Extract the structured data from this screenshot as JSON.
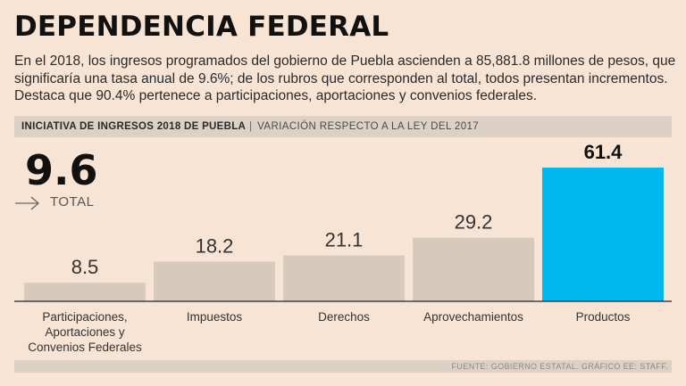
{
  "header": {
    "title": "DEPENDENCIA FEDERAL",
    "intro": "En el 2018, los ingresos programados del gobierno de Puebla ascienden a 85,881.8 millones de pesos, que significaría una tasa anual de 9.6%; de los rubros que corresponden al total, todos presentan incrementos. Destaca que 90.4% pertenece a participaciones, aportaciones y convenios federales."
  },
  "band": {
    "bold_label": "INICIATIVA DE INGRESOS 2018 DE PUEBLA",
    "separator": "|",
    "sub_label": "VARIACIÓN RESPECTO A LA LEY DEL 2017"
  },
  "total": {
    "value": "9.6",
    "label": "TOTAL"
  },
  "colors": {
    "bar": "#d7c9bb",
    "highlight": "#00b7ef",
    "background": "#f8e4d5"
  },
  "chart_data": {
    "type": "bar",
    "title": "INICIATIVA DE INGRESOS 2018 DE PUEBLA",
    "subtitle": "VARIACIÓN RESPECTO A LA LEY DEL 2017",
    "categories": [
      [
        "Participaciones,",
        "Aportaciones y",
        "Convenios Federales"
      ],
      [
        "Impuestos"
      ],
      [
        "Derechos"
      ],
      [
        "Aprovechamientos"
      ],
      [
        "Productos"
      ]
    ],
    "values": [
      8.5,
      18.2,
      21.1,
      29.2,
      61.4
    ],
    "value_labels": [
      "8.5",
      "18.2",
      "21.1",
      "29.2",
      "61.4"
    ],
    "highlight_index": 4,
    "ylim": [
      0,
      61.4
    ],
    "xlabel": "",
    "ylabel": "",
    "grid": false
  },
  "footer": {
    "source": "FUENTE: GOBIERNO ESTATAL. GRÁFICO EE: STAFF."
  }
}
